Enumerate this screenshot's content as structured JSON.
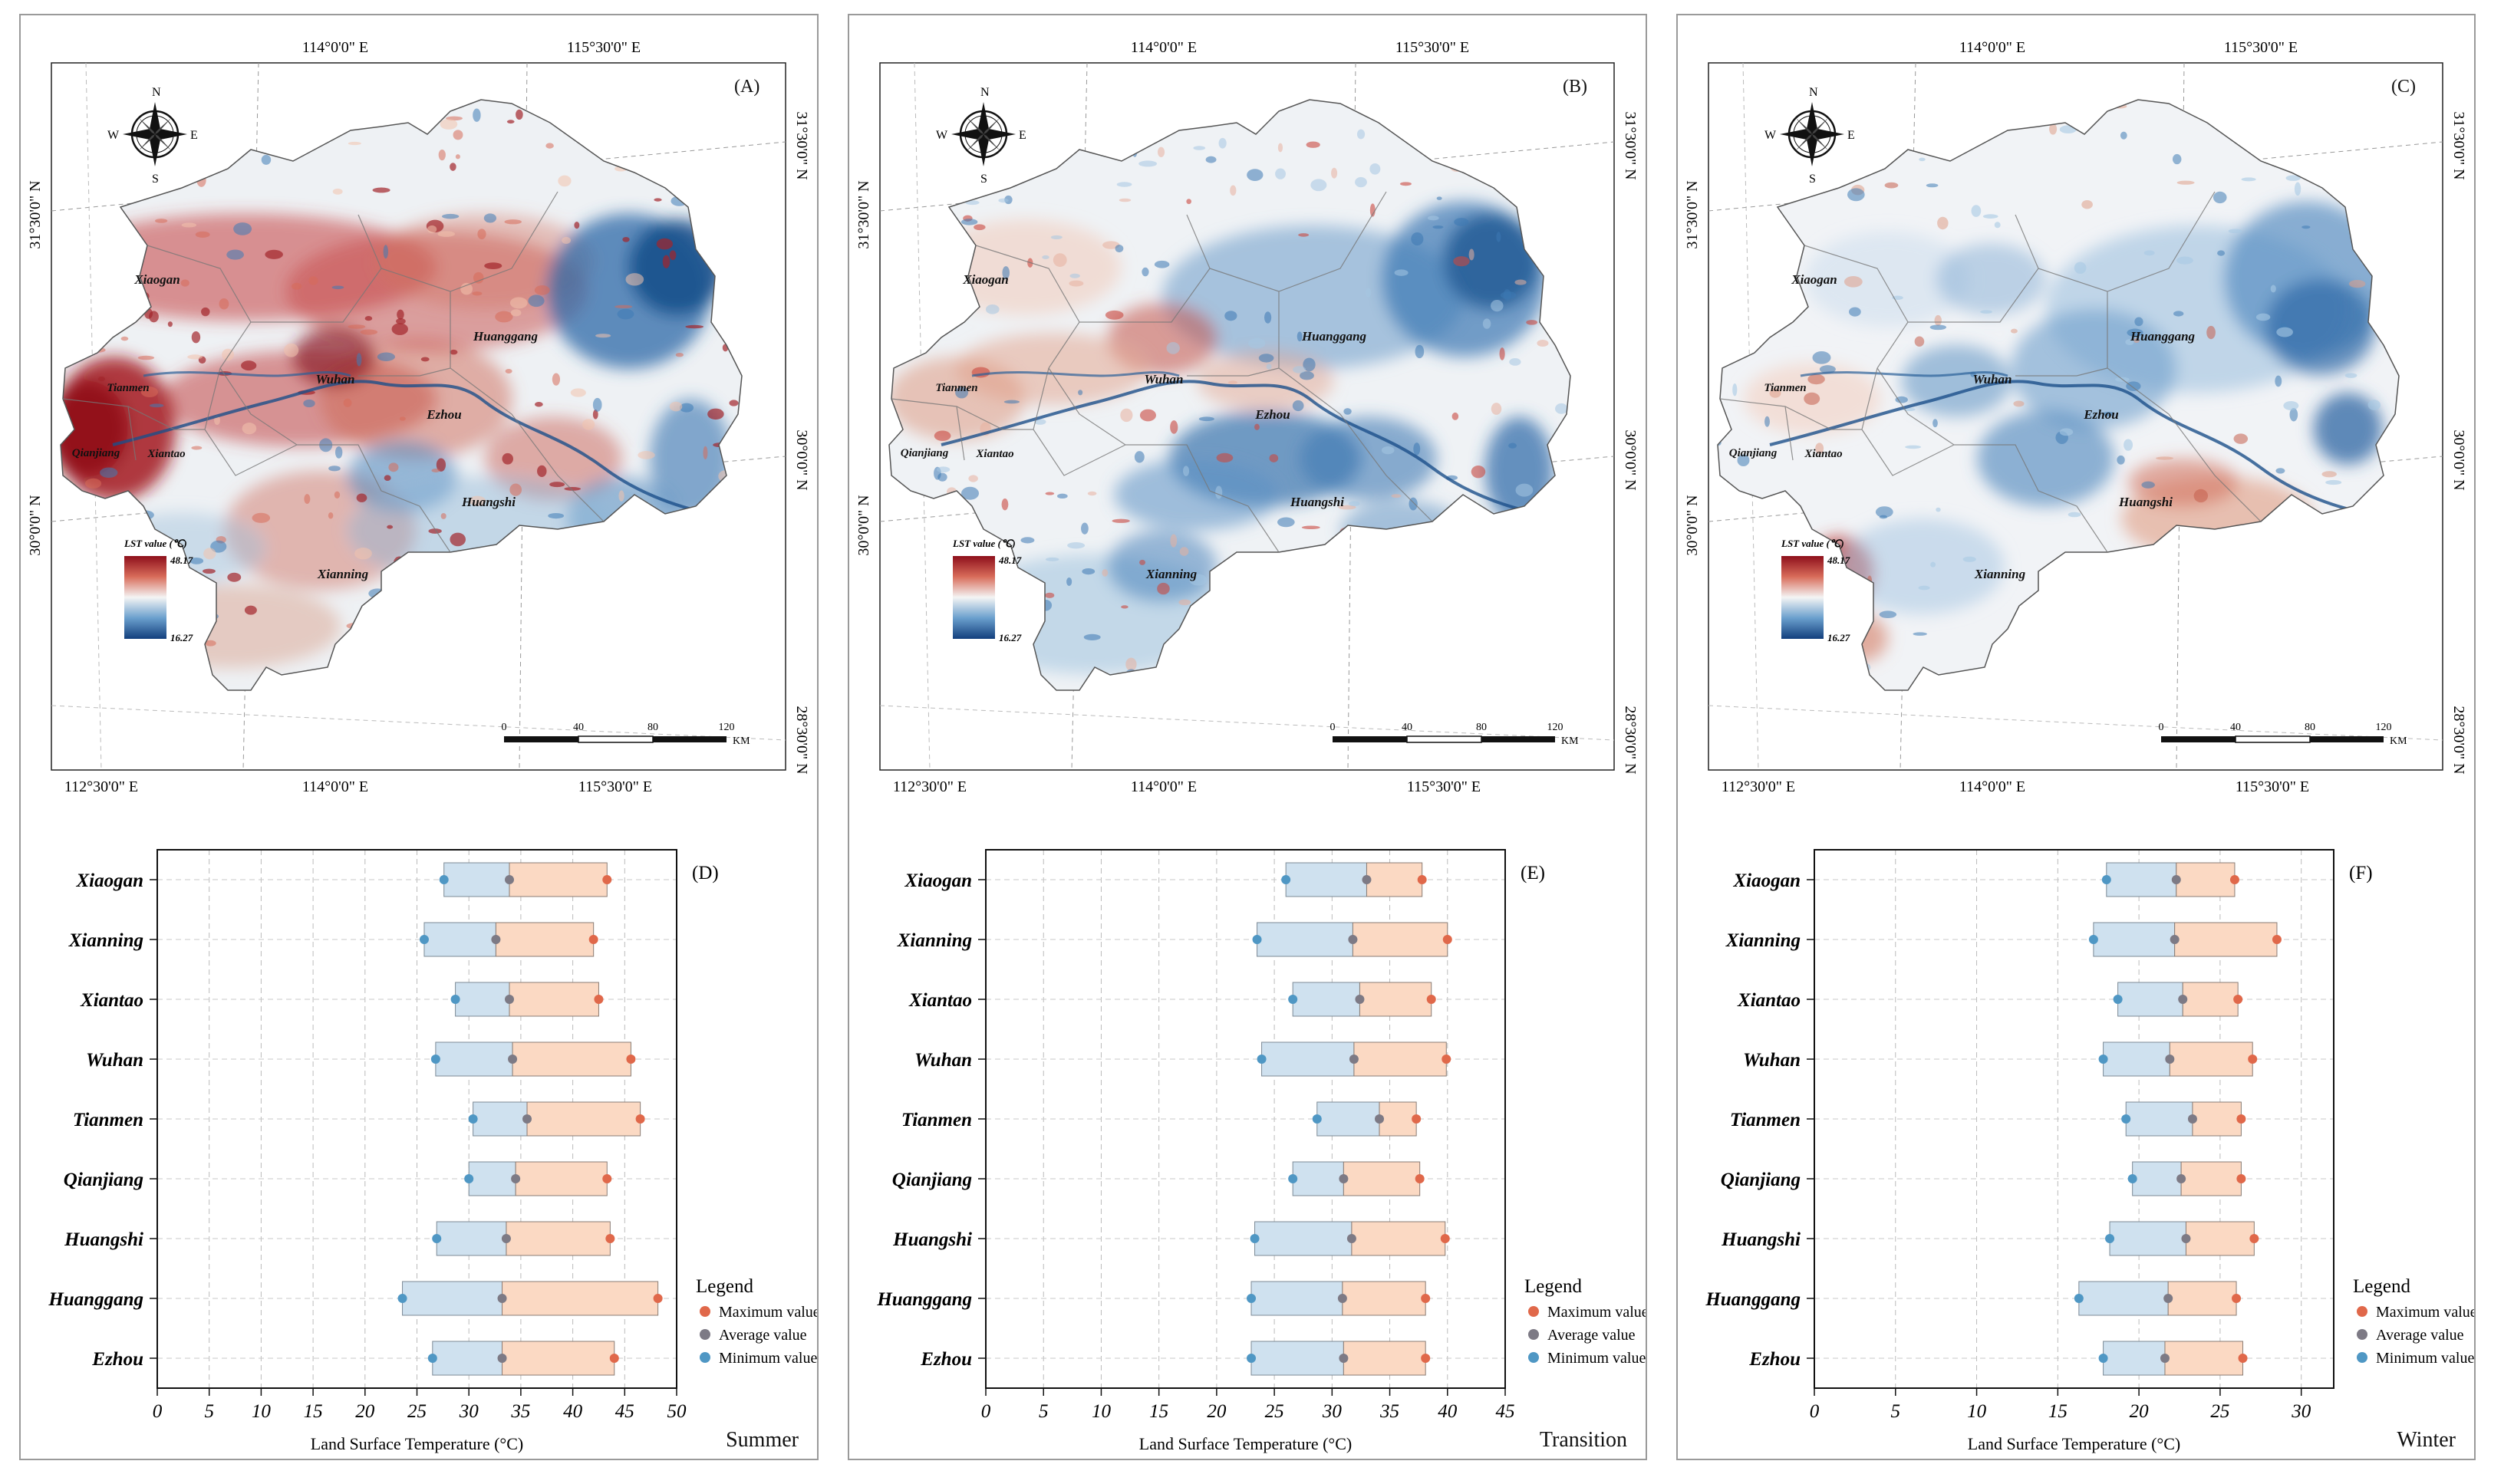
{
  "figure": {
    "panels": [
      {
        "map_label": "(A)",
        "chart_label": "(D)",
        "season": "Summer",
        "scheme": "summer",
        "top_lon_labels": [
          "114°0'0\" E",
          "115°30'0\" E"
        ],
        "bottom_lon_labels": [
          "112°30'0\" E",
          "114°0'0\" E",
          "115°30'0\" E"
        ],
        "left_lat_labels": [
          "31°30'0\" N",
          "30°0'0\" N"
        ],
        "right_lat_labels": [
          "31°30'0\" N",
          "30°0'0\" N",
          "28°30'0\" N"
        ]
      },
      {
        "map_label": "(B)",
        "chart_label": "(E)",
        "season": "Transition",
        "scheme": "transition",
        "top_lon_labels": [
          "114°0'0\" E",
          "115°30'0\" E"
        ],
        "bottom_lon_labels": [
          "112°30'0\" E",
          "114°0'0\" E",
          "115°30'0\" E"
        ],
        "left_lat_labels": [
          "31°30'0\" N",
          "30°0'0\" N"
        ],
        "right_lat_labels": [
          "31°30'0\" N",
          "30°0'0\" N",
          "28°30'0\" N"
        ]
      },
      {
        "map_label": "(C)",
        "chart_label": "(F)",
        "season": "Winter",
        "scheme": "winter",
        "top_lon_labels": [
          "114°0'0\" E",
          "115°30'0\" E"
        ],
        "bottom_lon_labels": [
          "112°30'0\" E",
          "114°0'0\" E",
          "115°30'0\" E"
        ],
        "left_lat_labels": [
          "31°30'0\" N",
          "30°0'0\" N"
        ],
        "right_lat_labels": [
          "31°30'0\" N",
          "30°0'0\" N",
          "28°30'0\" N"
        ]
      }
    ],
    "compass": {
      "n": "N",
      "s": "S",
      "e": "E",
      "w": "W"
    },
    "cities": [
      "Xiaogan",
      "Huanggang",
      "Tianmen",
      "Wuhan",
      "Qianjiang",
      "Xiantao",
      "Ezhou",
      "Huangshi",
      "Xianning"
    ],
    "lst_legend": {
      "title": "LST value (℃)",
      "max": "48.17",
      "min": "16.27"
    },
    "scalebar": {
      "ticks": [
        "0",
        "40",
        "80",
        "120"
      ],
      "unit": "KM"
    },
    "chart_legend": {
      "title": "Legend",
      "max": "Maximum value",
      "avg": "Average value",
      "min": "Minimum value"
    },
    "colors": {
      "max_dot": "#e0684a",
      "avg_dot": "#7d7a85",
      "min_dot": "#4f97c4",
      "blue_bar": "#cfe1ef",
      "orange_bar": "#fbd9c3"
    }
  },
  "chart_data": [
    {
      "type": "range-bar",
      "title": "(D)",
      "season": "Summer",
      "xlabel": "Land Surface Temperature (°C)",
      "xlim": [
        0,
        50
      ],
      "xticks": [
        0,
        5,
        10,
        15,
        20,
        25,
        30,
        35,
        40,
        45,
        50
      ],
      "categories": [
        "Xiaogan",
        "Xianning",
        "Xiantao",
        "Wuhan",
        "Tianmen",
        "Qianjiang",
        "Huangshi",
        "Huanggang",
        "Ezhou"
      ],
      "series": [
        {
          "name": "Maximum value",
          "values": [
            43.3,
            42.0,
            42.5,
            45.6,
            46.5,
            43.3,
            43.6,
            48.2,
            44.0
          ]
        },
        {
          "name": "Average value",
          "values": [
            33.9,
            32.6,
            33.9,
            34.2,
            35.6,
            34.5,
            33.6,
            33.2,
            33.2
          ]
        },
        {
          "name": "Minimum value",
          "values": [
            27.6,
            25.7,
            28.7,
            26.8,
            30.4,
            30.0,
            26.9,
            23.6,
            26.5
          ]
        }
      ]
    },
    {
      "type": "range-bar",
      "title": "(E)",
      "season": "Transition",
      "xlabel": "Land Surface Temperature (°C)",
      "xlim": [
        0,
        45
      ],
      "xticks": [
        0,
        5,
        10,
        15,
        20,
        25,
        30,
        35,
        40,
        45
      ],
      "categories": [
        "Xiaogan",
        "Xianning",
        "Xiantao",
        "Wuhan",
        "Tianmen",
        "Qianjiang",
        "Huangshi",
        "Huanggang",
        "Ezhou"
      ],
      "series": [
        {
          "name": "Maximum value",
          "values": [
            37.8,
            40.0,
            38.6,
            39.9,
            37.3,
            37.6,
            39.8,
            38.1,
            38.1
          ]
        },
        {
          "name": "Average value",
          "values": [
            33.0,
            31.8,
            32.4,
            31.9,
            34.1,
            31.0,
            31.7,
            30.9,
            31.0
          ]
        },
        {
          "name": "Minimum value",
          "values": [
            26.0,
            23.5,
            26.6,
            23.9,
            28.7,
            26.6,
            23.3,
            23.0,
            23.0
          ]
        }
      ]
    },
    {
      "type": "range-bar",
      "title": "(F)",
      "season": "Winter",
      "xlabel": "Land Surface Temperature (°C)",
      "xlim": [
        0,
        32
      ],
      "xticks": [
        0,
        5,
        10,
        15,
        20,
        25,
        30
      ],
      "categories": [
        "Xiaogan",
        "Xianning",
        "Xiantao",
        "Wuhan",
        "Tianmen",
        "Qianjiang",
        "Huangshi",
        "Huanggang",
        "Ezhou"
      ],
      "series": [
        {
          "name": "Maximum value",
          "values": [
            25.9,
            28.5,
            26.1,
            27.0,
            26.3,
            26.3,
            27.1,
            26.0,
            26.4
          ]
        },
        {
          "name": "Average value",
          "values": [
            22.3,
            22.2,
            22.7,
            21.9,
            23.3,
            22.6,
            22.9,
            21.8,
            21.6
          ]
        },
        {
          "name": "Minimum value",
          "values": [
            18.0,
            17.2,
            18.7,
            17.8,
            19.2,
            19.6,
            18.2,
            16.3,
            17.8
          ]
        }
      ]
    }
  ]
}
